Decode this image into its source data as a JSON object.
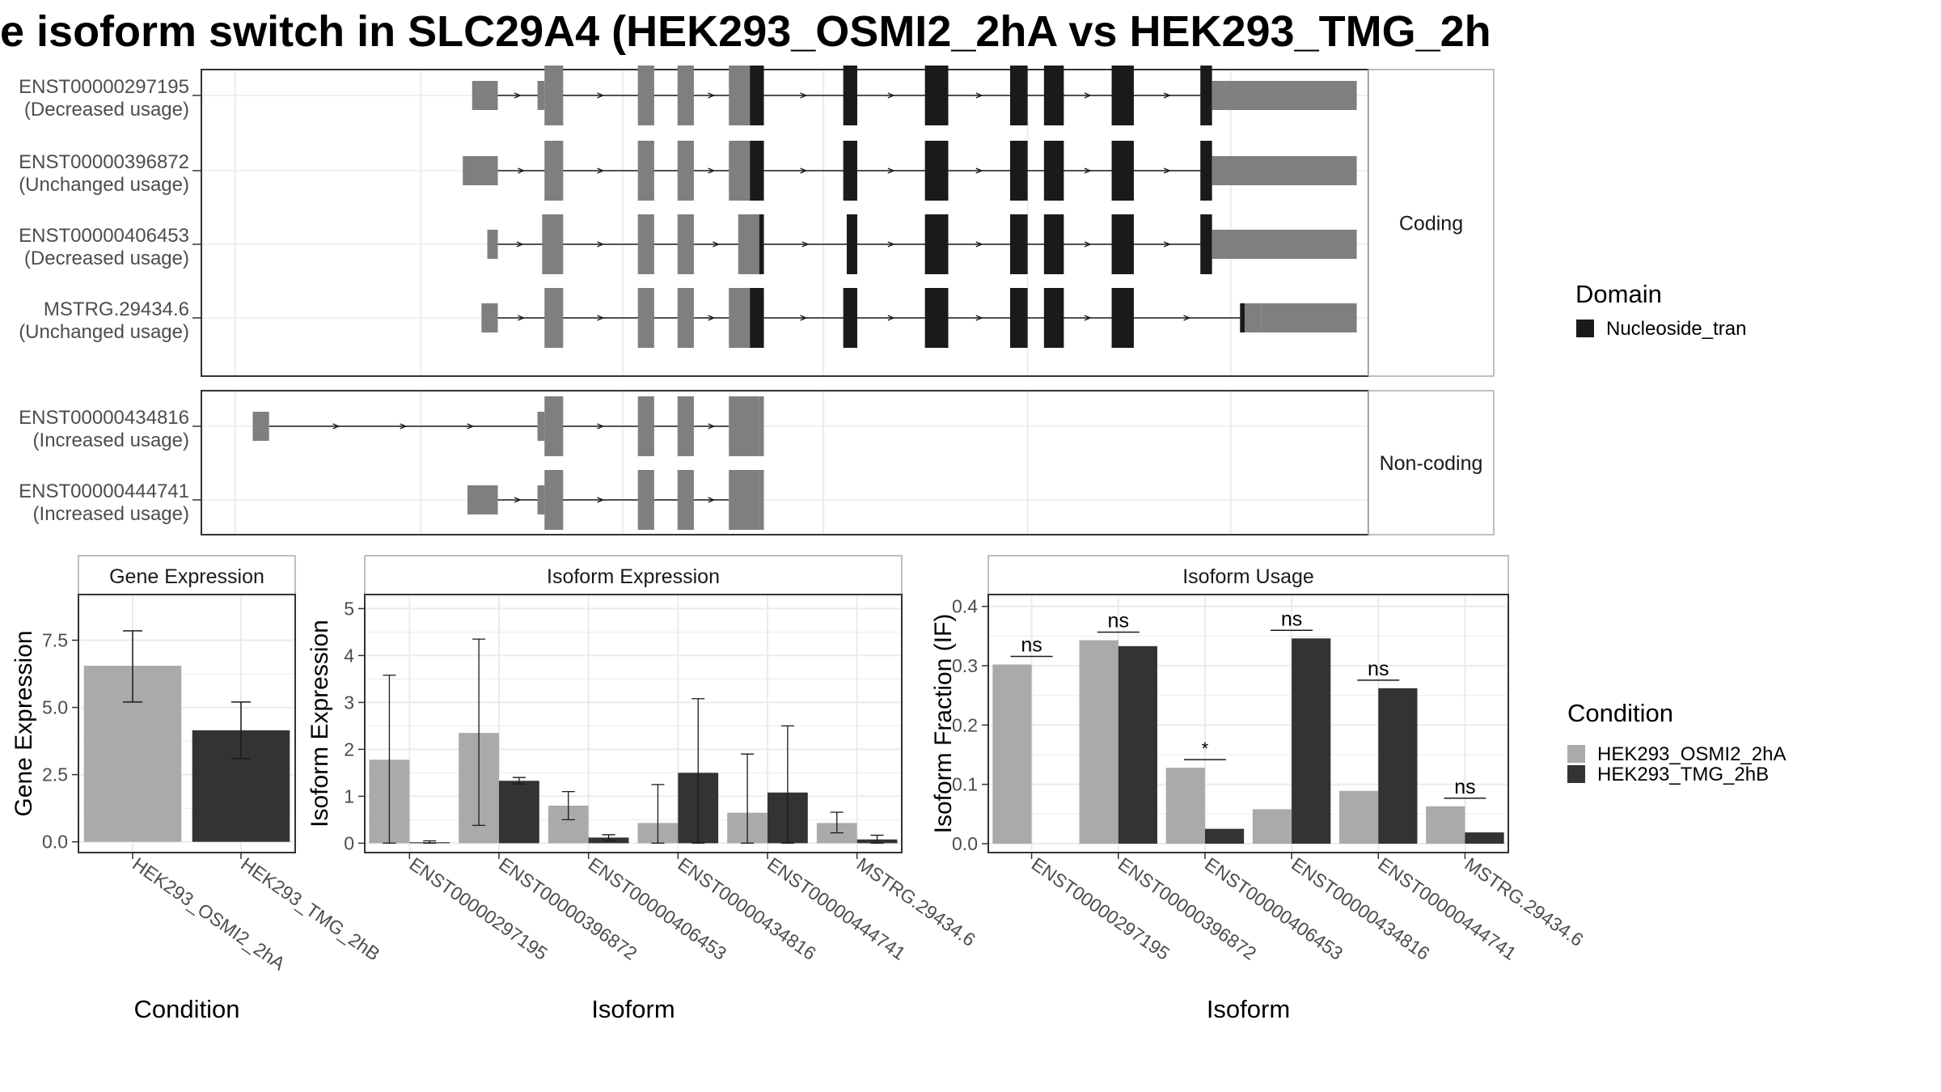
{
  "title": "e isoform switch in SLC29A4 (HEK293_OSMI2_2hA vs HEK293_TMG_2h",
  "colors": {
    "utr": "#7f7f7f",
    "domain": "#1a1a1a",
    "cond_a": "#aaaaaa",
    "cond_b": "#333333",
    "grid": "#ebebeb",
    "strip": "#ffffff",
    "border": "#333333"
  },
  "structure": {
    "facets": [
      "Coding",
      "Non-coding"
    ],
    "legend": {
      "title": "Domain",
      "items": [
        "Nucleoside_tran"
      ]
    },
    "isoforms": [
      {
        "id": "ENST00000297195",
        "usage": "(Decreased usage)",
        "facet": "Coding",
        "exons": [
          [
            0.232,
            0.254,
            "u"
          ],
          [
            0.288,
            0.294,
            "u"
          ],
          [
            0.294,
            0.31,
            "u"
          ],
          [
            0.374,
            0.388,
            "u"
          ],
          [
            0.408,
            0.422,
            "u"
          ],
          [
            0.452,
            0.47,
            "u"
          ],
          [
            0.47,
            0.482,
            "d"
          ],
          [
            0.55,
            0.562,
            "d"
          ],
          [
            0.62,
            0.64,
            "d"
          ],
          [
            0.693,
            0.708,
            "d"
          ],
          [
            0.722,
            0.739,
            "d"
          ],
          [
            0.78,
            0.799,
            "d"
          ],
          [
            0.856,
            0.866,
            "d"
          ],
          [
            0.866,
            0.878,
            "u"
          ],
          [
            0.878,
            0.99,
            "u"
          ]
        ],
        "span": [
          0.254,
          0.856
        ],
        "utr_tails": [
          [
            0.288,
            0.294
          ],
          [
            0.878,
            0.99
          ]
        ]
      },
      {
        "id": "ENST00000396872",
        "usage": "(Unchanged usage)",
        "facet": "Coding",
        "exons": [
          [
            0.224,
            0.254,
            "u"
          ],
          [
            0.294,
            0.31,
            "u"
          ],
          [
            0.374,
            0.388,
            "u"
          ],
          [
            0.408,
            0.422,
            "u"
          ],
          [
            0.452,
            0.47,
            "u"
          ],
          [
            0.47,
            0.482,
            "d"
          ],
          [
            0.55,
            0.562,
            "d"
          ],
          [
            0.62,
            0.64,
            "d"
          ],
          [
            0.693,
            0.708,
            "d"
          ],
          [
            0.722,
            0.739,
            "d"
          ],
          [
            0.78,
            0.799,
            "d"
          ],
          [
            0.856,
            0.866,
            "d"
          ],
          [
            0.866,
            0.878,
            "u"
          ],
          [
            0.878,
            0.99,
            "u"
          ]
        ],
        "span": [
          0.254,
          0.856
        ],
        "utr_tails": [
          [
            0.288,
            0.294
          ]
        ]
      },
      {
        "id": "ENST00000406453",
        "usage": "(Decreased usage)",
        "facet": "Coding",
        "exons": [
          [
            0.245,
            0.254,
            "u"
          ],
          [
            0.292,
            0.31,
            "u"
          ],
          [
            0.374,
            0.388,
            "u"
          ],
          [
            0.408,
            0.422,
            "u"
          ],
          [
            0.46,
            0.478,
            "u"
          ],
          [
            0.478,
            0.482,
            "d"
          ],
          [
            0.553,
            0.562,
            "d"
          ],
          [
            0.62,
            0.64,
            "d"
          ],
          [
            0.693,
            0.708,
            "d"
          ],
          [
            0.722,
            0.739,
            "d"
          ],
          [
            0.78,
            0.799,
            "d"
          ],
          [
            0.856,
            0.866,
            "d"
          ],
          [
            0.866,
            0.878,
            "u"
          ],
          [
            0.878,
            0.99,
            "u"
          ]
        ],
        "span": [
          0.254,
          0.856
        ],
        "utr_tails": [
          [
            0.288,
            0.294
          ]
        ]
      },
      {
        "id": "MSTRG.29434.6",
        "usage": "(Unchanged usage)",
        "facet": "Coding",
        "exons": [
          [
            0.24,
            0.254,
            "u"
          ],
          [
            0.294,
            0.31,
            "u"
          ],
          [
            0.374,
            0.388,
            "u"
          ],
          [
            0.408,
            0.422,
            "u"
          ],
          [
            0.452,
            0.47,
            "u"
          ],
          [
            0.47,
            0.482,
            "d"
          ],
          [
            0.55,
            0.562,
            "d"
          ],
          [
            0.62,
            0.64,
            "d"
          ],
          [
            0.693,
            0.708,
            "d"
          ],
          [
            0.722,
            0.739,
            "d"
          ],
          [
            0.78,
            0.799,
            "d"
          ],
          [
            0.89,
            0.894,
            "d"
          ],
          [
            0.894,
            0.908,
            "u"
          ],
          [
            0.908,
            0.99,
            "u"
          ]
        ],
        "span": [
          0.254,
          0.89
        ],
        "utr_tails": [
          [
            0.288,
            0.294
          ]
        ]
      },
      {
        "id": "ENST00000434816",
        "usage": "(Increased usage)",
        "facet": "Non-coding",
        "exons": [
          [
            0.044,
            0.058,
            "u"
          ],
          [
            0.288,
            0.294,
            "u"
          ],
          [
            0.294,
            0.31,
            "u"
          ],
          [
            0.374,
            0.388,
            "u"
          ],
          [
            0.408,
            0.422,
            "u"
          ],
          [
            0.452,
            0.478,
            "u"
          ],
          [
            0.478,
            0.482,
            "u"
          ]
        ],
        "span": [
          0.058,
          0.452
        ],
        "utr_tails": []
      },
      {
        "id": "ENST00000444741",
        "usage": "(Increased usage)",
        "facet": "Non-coding",
        "exons": [
          [
            0.228,
            0.254,
            "u"
          ],
          [
            0.288,
            0.294,
            "u"
          ],
          [
            0.294,
            0.31,
            "u"
          ],
          [
            0.374,
            0.388,
            "u"
          ],
          [
            0.408,
            0.422,
            "u"
          ],
          [
            0.452,
            0.478,
            "u"
          ],
          [
            0.478,
            0.482,
            "u"
          ]
        ],
        "span": [
          0.254,
          0.452
        ],
        "utr_tails": []
      }
    ]
  },
  "chart_data": [
    {
      "type": "bar",
      "title": "Gene Expression",
      "xlabel": "Condition",
      "ylabel": "Gene Expression",
      "categories": [
        "HEK293_OSMI2_2hA",
        "HEK293_TMG_2hB"
      ],
      "values": [
        6.55,
        4.15
      ],
      "errors": [
        [
          5.2,
          7.85
        ],
        [
          3.1,
          5.2
        ]
      ],
      "ylim": [
        -0.4,
        9.2
      ],
      "yticks": [
        0.0,
        2.5,
        5.0,
        7.5
      ],
      "ytick_labels": [
        "0.0",
        "2.5",
        "5.0",
        "7.5"
      ],
      "grid": true
    },
    {
      "type": "bar",
      "title": "Isoform Expression",
      "xlabel": "Isoform",
      "ylabel": "Isoform Expression",
      "categories": [
        "ENST00000297195",
        "ENST00000396872",
        "ENST00000406453",
        "ENST00000434816",
        "ENST00000444741",
        "MSTRG.29434.6"
      ],
      "series": [
        {
          "condition": "HEK293_OSMI2_2hA",
          "values": [
            1.78,
            2.35,
            0.8,
            0.43,
            0.65,
            0.43
          ],
          "errors": [
            [
              0.0,
              3.58
            ],
            [
              0.38,
              4.35
            ],
            [
              0.5,
              1.1
            ],
            [
              0.0,
              1.25
            ],
            [
              0.0,
              1.9
            ],
            [
              0.22,
              0.66
            ]
          ]
        },
        {
          "condition": "HEK293_TMG_2hB",
          "values": [
            0.02,
            1.33,
            0.12,
            1.5,
            1.08,
            0.08
          ],
          "errors": [
            [
              0.0,
              0.05
            ],
            [
              1.26,
              1.4
            ],
            [
              0.06,
              0.18
            ],
            [
              0.0,
              3.08
            ],
            [
              0.0,
              2.5
            ],
            [
              0.0,
              0.17
            ]
          ]
        }
      ],
      "ylim": [
        -0.2,
        5.3
      ],
      "yticks": [
        0,
        1,
        2,
        3,
        4,
        5
      ],
      "ytick_labels": [
        "0",
        "1",
        "2",
        "3",
        "4",
        "5"
      ],
      "grid": true
    },
    {
      "type": "bar",
      "title": "Isoform Usage",
      "xlabel": "Isoform",
      "ylabel": "Isoform Fraction (IF)",
      "categories": [
        "ENST00000297195",
        "ENST00000396872",
        "ENST00000406453",
        "ENST00000434816",
        "ENST00000444741",
        "MSTRG.29434.6"
      ],
      "series": [
        {
          "condition": "HEK293_OSMI2_2hA",
          "values": [
            0.302,
            0.343,
            0.128,
            0.058,
            0.089,
            0.063
          ]
        },
        {
          "condition": "HEK293_TMG_2hB",
          "values": [
            0.0,
            0.333,
            0.025,
            0.346,
            0.262,
            0.019
          ]
        }
      ],
      "significance": [
        "ns",
        "ns",
        "*",
        "ns",
        "ns",
        "ns"
      ],
      "ylim": [
        -0.015,
        0.42
      ],
      "yticks": [
        0.0,
        0.1,
        0.2,
        0.3,
        0.4
      ],
      "ytick_labels": [
        "0.0",
        "0.1",
        "0.2",
        "0.3",
        "0.4"
      ],
      "grid": true
    }
  ],
  "condition_legend": {
    "title": "Condition",
    "items": [
      "HEK293_OSMI2_2hA",
      "HEK293_TMG_2hB"
    ]
  }
}
